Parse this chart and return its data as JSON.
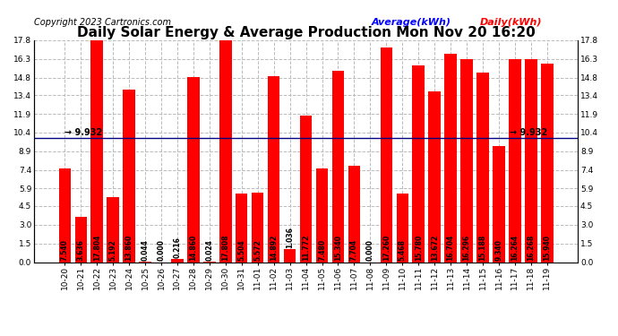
{
  "title": "Daily Solar Energy & Average Production Mon Nov 20 16:20",
  "copyright": "Copyright 2023 Cartronics.com",
  "legend_average": "Average(kWh)",
  "legend_daily": "Daily(kWh)",
  "average_value": 9.932,
  "categories": [
    "10-20",
    "10-21",
    "10-22",
    "10-23",
    "10-24",
    "10-25",
    "10-26",
    "10-27",
    "10-28",
    "10-29",
    "10-30",
    "10-31",
    "11-01",
    "11-02",
    "11-03",
    "11-04",
    "11-05",
    "11-06",
    "11-07",
    "11-08",
    "11-09",
    "11-10",
    "11-11",
    "11-12",
    "11-13",
    "11-14",
    "11-15",
    "11-16",
    "11-17",
    "11-18",
    "11-19"
  ],
  "values": [
    7.54,
    3.636,
    17.804,
    5.192,
    13.86,
    0.044,
    0.0,
    0.216,
    14.86,
    0.024,
    17.808,
    5.504,
    5.572,
    14.892,
    1.036,
    11.772,
    7.48,
    15.34,
    7.704,
    0.0,
    17.26,
    5.468,
    15.78,
    13.672,
    16.704,
    16.296,
    15.188,
    9.34,
    16.264,
    16.268,
    15.94
  ],
  "bar_color": "#ff0000",
  "avg_line_color": "#000080",
  "title_color": "#000000",
  "copyright_color": "#000000",
  "legend_avg_color": "#0000ff",
  "legend_daily_color": "#ff0000",
  "avg_label_left_color": "#000000",
  "avg_label_right_color": "#000000",
  "ylim": [
    0.0,
    17.8
  ],
  "yticks": [
    0.0,
    1.5,
    3.0,
    4.5,
    5.9,
    7.4,
    8.9,
    10.4,
    11.9,
    13.4,
    14.8,
    16.3,
    17.8
  ],
  "background_color": "#ffffff",
  "grid_color": "#bbbbbb",
  "title_fontsize": 11,
  "copyright_fontsize": 7,
  "tick_label_fontsize": 6.5,
  "value_label_fontsize": 5.5,
  "avg_fontsize": 7
}
